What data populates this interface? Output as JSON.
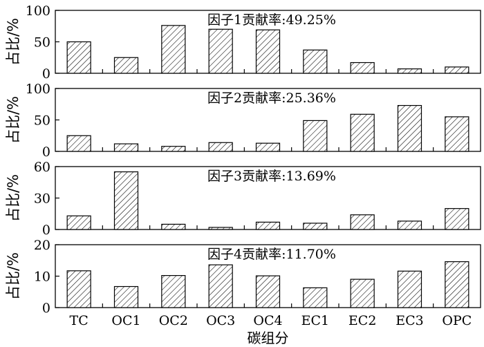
{
  "chart_data": [
    {
      "type": "bar",
      "annotation": "因子1贡献率:49.25%",
      "ylabel": "占比/%",
      "ylim": [
        0,
        100
      ],
      "yticks": [
        "0",
        "50",
        "100"
      ],
      "categories": [
        "TC",
        "OC1",
        "OC2",
        "OC3",
        "OC4",
        "EC1",
        "EC2",
        "EC3",
        "OPC"
      ],
      "values": [
        50,
        25,
        76,
        70,
        69,
        37,
        17,
        7,
        10
      ]
    },
    {
      "type": "bar",
      "annotation": "因子2贡献率:25.36%",
      "ylabel": "占比/%",
      "ylim": [
        0,
        100
      ],
      "yticks": [
        "0",
        "50",
        "100"
      ],
      "categories": [
        "TC",
        "OC1",
        "OC2",
        "OC3",
        "OC4",
        "EC1",
        "EC2",
        "EC3",
        "OPC"
      ],
      "values": [
        25,
        12,
        8,
        14,
        13,
        49,
        59,
        73,
        55
      ]
    },
    {
      "type": "bar",
      "annotation": "因子3贡献率:13.69%",
      "ylabel": "占比/%",
      "ylim": [
        0,
        60
      ],
      "yticks": [
        "0",
        "30",
        "60"
      ],
      "categories": [
        "TC",
        "OC1",
        "OC2",
        "OC3",
        "OC4",
        "EC1",
        "EC2",
        "EC3",
        "OPC"
      ],
      "values": [
        13,
        55,
        5,
        2,
        7,
        6,
        14,
        8,
        20
      ]
    },
    {
      "type": "bar",
      "annotation": "因子4贡献率:11.70%",
      "ylabel": "占比/%",
      "ylim": [
        0,
        20
      ],
      "yticks": [
        "0",
        "10",
        "20"
      ],
      "categories": [
        "TC",
        "OC1",
        "OC2",
        "OC3",
        "OC4",
        "EC1",
        "EC2",
        "EC3",
        "OPC"
      ],
      "values": [
        11.7,
        6.7,
        10.2,
        13.6,
        10.1,
        6.3,
        9,
        11.6,
        14.6
      ]
    }
  ],
  "xaxis": {
    "tick_labels": [
      "TC",
      "OC1",
      "OC2",
      "OC3",
      "OC4",
      "EC1",
      "EC2",
      "EC3",
      "OPC"
    ],
    "label": "碳组分"
  }
}
